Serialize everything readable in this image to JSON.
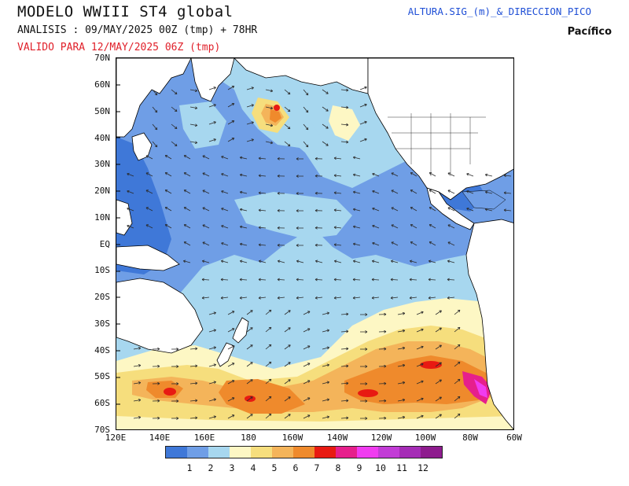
{
  "header": {
    "title": "MODELO WWIII ST4 global",
    "analysis": "ANALISIS : 09/MAY/2025 00Z  (tmp) + 78HR",
    "valid": "VALIDO PARA  12/MAY/2025 06Z  (tmp)",
    "product": "ALTURA.SIG_(m)_&_DIRECCION_PICO",
    "region": "Pacífico"
  },
  "axes": {
    "lat_labels": [
      "70N",
      "60N",
      "50N",
      "40N",
      "30N",
      "20N",
      "10N",
      "EQ",
      "10S",
      "20S",
      "30S",
      "40S",
      "50S",
      "60S",
      "70S"
    ],
    "lon_labels": [
      "120E",
      "140E",
      "160E",
      "180",
      "160W",
      "140W",
      "120W",
      "100W",
      "80W",
      "60W"
    ]
  },
  "colorbar": {
    "colors": [
      "#3f78d8",
      "#6f9ee6",
      "#a7d7ef",
      "#fdf7c4",
      "#f6de7d",
      "#f4b45a",
      "#ef8a2c",
      "#e81a12",
      "#e61f8c",
      "#f03cf0",
      "#c23cd6",
      "#a52cb6",
      "#8e1c8e"
    ],
    "labels": [
      "1",
      "2",
      "3",
      "4",
      "5",
      "6",
      "7",
      "8",
      "9",
      "10",
      "11",
      "12"
    ]
  },
  "map": {
    "land_color": "#ffffff",
    "coast_color": "#000000",
    "arrow_color": "#2b2b2b"
  }
}
